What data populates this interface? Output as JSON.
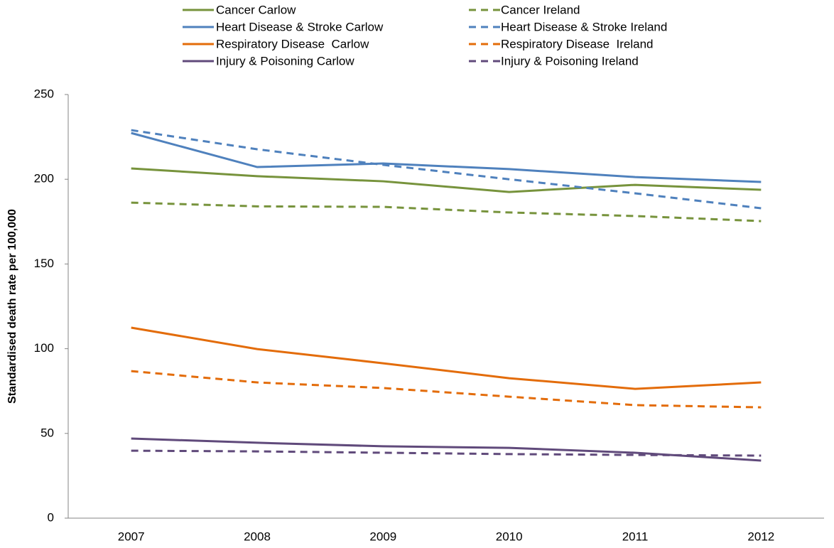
{
  "chart_data": {
    "type": "line",
    "y_label": "Standardised death rate per 100,000",
    "categories": [
      "2007",
      "2008",
      "2009",
      "2010",
      "2011",
      "2012"
    ],
    "ylim": [
      0,
      250
    ],
    "yticks": [
      0,
      50,
      100,
      150,
      200,
      250
    ],
    "grid": false,
    "legend": "top",
    "series": [
      {
        "name": "Cancer Carlow",
        "color": "#77933c",
        "dashed": false,
        "values": [
          206.4,
          201.8,
          198.8,
          192.5,
          196.7,
          193.8
        ]
      },
      {
        "name": "Cancer Ireland",
        "color": "#77933c",
        "dashed": true,
        "values": [
          186.2,
          184,
          183.7,
          180.4,
          178.3,
          175.3
        ]
      },
      {
        "name": "Heart Disease & Stroke Carlow",
        "color": "#4f81bd",
        "dashed": false,
        "values": [
          227.3,
          207.2,
          209.3,
          206,
          201.3,
          198.4
        ]
      },
      {
        "name": "Heart Disease & Stroke Ireland",
        "color": "#4f81bd",
        "dashed": true,
        "values": [
          229,
          217.7,
          208.5,
          200,
          191.7,
          182.9
        ]
      },
      {
        "name": "Respiratory Disease  Carlow",
        "color": "#e36c0a",
        "dashed": false,
        "values": [
          112.4,
          99.8,
          91.4,
          82.6,
          76.3,
          80.1
        ]
      },
      {
        "name": "Respiratory Disease  Ireland",
        "color": "#e36c0a",
        "dashed": true,
        "values": [
          86.8,
          80.1,
          76.8,
          71.7,
          66.7,
          65.4
        ]
      },
      {
        "name": "Injury & Poisoning Carlow",
        "color": "#604a7b",
        "dashed": false,
        "values": [
          47,
          44.5,
          42.4,
          41.5,
          38.6,
          34
        ]
      },
      {
        "name": "Injury & Poisoning Ireland",
        "color": "#604a7b",
        "dashed": true,
        "values": [
          39.8,
          39.4,
          38.6,
          37.8,
          37.3,
          36.9
        ]
      }
    ]
  }
}
